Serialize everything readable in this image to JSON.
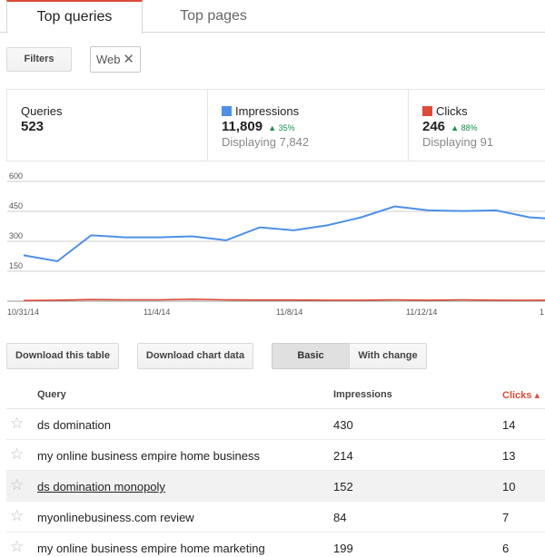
{
  "tabs": {
    "active": "Top queries",
    "inactive": "Top pages"
  },
  "filters": {
    "button_label": "Filters",
    "chip_label": "Web",
    "chip_remove": "✕"
  },
  "metrics": {
    "queries": {
      "label": "Queries",
      "value": "523"
    },
    "impressions": {
      "label": "Impressions",
      "value": "11,809",
      "change": "35%",
      "displaying": "Displaying 7,842",
      "color": "#4d90e6"
    },
    "clicks": {
      "label": "Clicks",
      "value": "246",
      "change": "88%",
      "displaying": "Displaying 91",
      "color": "#dd4b39"
    }
  },
  "chart_data": {
    "type": "line",
    "y_ticks": [
      "600",
      "450",
      "300",
      "150"
    ],
    "ylim": [
      0,
      600
    ],
    "x_labels": [
      "10/31/14",
      "11/4/14",
      "11/8/14",
      "11/12/14",
      "1"
    ],
    "series": [
      {
        "color": "#4d90e6",
        "values": [
          230,
          200,
          330,
          320,
          320,
          325,
          305,
          370,
          355,
          380,
          420,
          475,
          455,
          452,
          455,
          420,
          410
        ]
      },
      {
        "color": "#dd4b39",
        "values": [
          3,
          5,
          8,
          7,
          7,
          10,
          7,
          6,
          6,
          5,
          5,
          7,
          5,
          7,
          5,
          4,
          6
        ]
      }
    ]
  },
  "buttons": {
    "download_table": "Download this table",
    "download_chart": "Download chart data",
    "basic": "Basic",
    "with_change": "With change"
  },
  "table": {
    "headers": {
      "query": "Query",
      "impressions": "Impressions",
      "clicks": "Clicks ▴"
    },
    "rows": [
      {
        "query": "ds domination",
        "impressions": "430",
        "clicks": "14"
      },
      {
        "query": "my online business empire home business",
        "impressions": "214",
        "clicks": "13"
      },
      {
        "query": "ds domination monopoly",
        "impressions": "152",
        "clicks": "10"
      },
      {
        "query": "myonlinebusiness.com review",
        "impressions": "84",
        "clicks": "7"
      },
      {
        "query": "my online business empire home marketing",
        "impressions": "199",
        "clicks": "6"
      }
    ]
  }
}
